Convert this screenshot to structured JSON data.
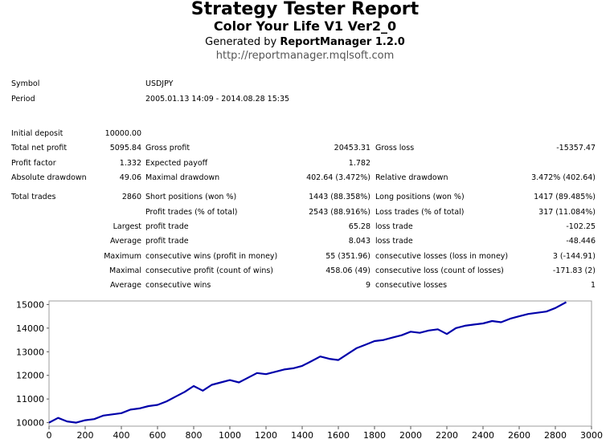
{
  "header": {
    "title": "Strategy Tester Report",
    "subtitle": "Color Your Life V1 Ver2_0",
    "generated_prefix": "Generated by ",
    "generated_by": "ReportManager 1.2.0",
    "url": "http://reportmanager.mqlsoft.com"
  },
  "info": {
    "symbol_label": "Symbol",
    "symbol_value": "USDJPY",
    "period_label": "Period",
    "period_value": "2005.01.13 14:09 - 2014.08.28 15:35"
  },
  "stats": {
    "initial_deposit_label": "Initial deposit",
    "initial_deposit_value": "10000.00",
    "total_net_profit_label": "Total net profit",
    "total_net_profit_value": "5095.84",
    "gross_profit_label": "Gross profit",
    "gross_profit_value": "20453.31",
    "gross_loss_label": "Gross loss",
    "gross_loss_value": "-15357.47",
    "profit_factor_label": "Profit factor",
    "profit_factor_value": "1.332",
    "expected_payoff_label": "Expected payoff",
    "expected_payoff_value": "1.782",
    "absolute_drawdown_label": "Absolute drawdown",
    "absolute_drawdown_value": "49.06",
    "maximal_drawdown_label": "Maximal drawdown",
    "maximal_drawdown_value": "402.64 (3.472%)",
    "relative_drawdown_label": "Relative drawdown",
    "relative_drawdown_value": "3.472% (402.64)",
    "total_trades_label": "Total trades",
    "total_trades_value": "2860",
    "short_positions_label": "Short positions (won %)",
    "short_positions_value": "1443 (88.358%)",
    "long_positions_label": "Long positions (won %)",
    "long_positions_value": "1417 (89.485%)",
    "profit_trades_label": "Profit trades (% of total)",
    "profit_trades_value": "2543 (88.916%)",
    "loss_trades_label": "Loss trades (% of total)",
    "loss_trades_value": "317 (11.084%)",
    "largest_label": "Largest",
    "largest_profit_label": "profit trade",
    "largest_profit_value": "65.28",
    "largest_loss_label": "loss trade",
    "largest_loss_value": "-102.25",
    "average_label": "Average",
    "average_profit_label": "profit trade",
    "average_profit_value": "8.043",
    "average_loss_label": "loss trade",
    "average_loss_value": "-48.446",
    "maximum_label": "Maximum",
    "max_consec_wins_label": "consecutive wins (profit in money)",
    "max_consec_wins_value": "55 (351.96)",
    "max_consec_losses_label": "consecutive losses (loss in money)",
    "max_consec_losses_value": "3 (-144.91)",
    "maximal_label": "Maximal",
    "maximal_consec_profit_label": "consecutive profit (count of wins)",
    "maximal_consec_profit_value": "458.06 (49)",
    "maximal_consec_loss_label": "consecutive loss (count of losses)",
    "maximal_consec_loss_value": "-171.83 (2)",
    "average2_label": "Average",
    "avg_consec_wins_label": "consecutive wins",
    "avg_consec_wins_value": "9",
    "avg_consec_losses_label": "consecutive losses",
    "avg_consec_losses_value": "1"
  },
  "chart_data": {
    "type": "line",
    "title": "",
    "xlabel": "",
    "ylabel": "",
    "xlim": [
      0,
      3000
    ],
    "ylim": [
      9850,
      15150
    ],
    "x_ticks": [
      "0",
      "200",
      "400",
      "600",
      "800",
      "1000",
      "1200",
      "1400",
      "1600",
      "1800",
      "2000",
      "2200",
      "2400",
      "2600",
      "2800",
      "3000"
    ],
    "y_ticks": [
      "10000",
      "11000",
      "12000",
      "13000",
      "14000",
      "15000"
    ],
    "line_color": "#0000aa",
    "grid": false,
    "series": [
      {
        "x": [
          0,
          50,
          100,
          150,
          200,
          250,
          300,
          350,
          400,
          450,
          500,
          550,
          600,
          650,
          700,
          750,
          800,
          850,
          900,
          950,
          1000,
          1050,
          1100,
          1150,
          1200,
          1250,
          1300,
          1350,
          1400,
          1450,
          1500,
          1550,
          1600,
          1650,
          1700,
          1750,
          1800,
          1850,
          1900,
          1950,
          2000,
          2050,
          2100,
          2150,
          2200,
          2250,
          2300,
          2350,
          2400,
          2450,
          2500,
          2550,
          2600,
          2650,
          2700,
          2750,
          2800,
          2860
        ],
        "y": [
          10000,
          10200,
          10050,
          10000,
          10100,
          10150,
          10300,
          10350,
          10400,
          10550,
          10600,
          10700,
          10750,
          10900,
          11100,
          11300,
          11550,
          11350,
          11600,
          11700,
          11800,
          11700,
          11900,
          12100,
          12050,
          12150,
          12250,
          12300,
          12400,
          12600,
          12800,
          12700,
          12650,
          12900,
          13150,
          13300,
          13450,
          13500,
          13600,
          13700,
          13850,
          13800,
          13900,
          13950,
          13750,
          14000,
          14100,
          14150,
          14200,
          14300,
          14250,
          14400,
          14500,
          14600,
          14650,
          14700,
          14850,
          15100
        ]
      }
    ]
  }
}
